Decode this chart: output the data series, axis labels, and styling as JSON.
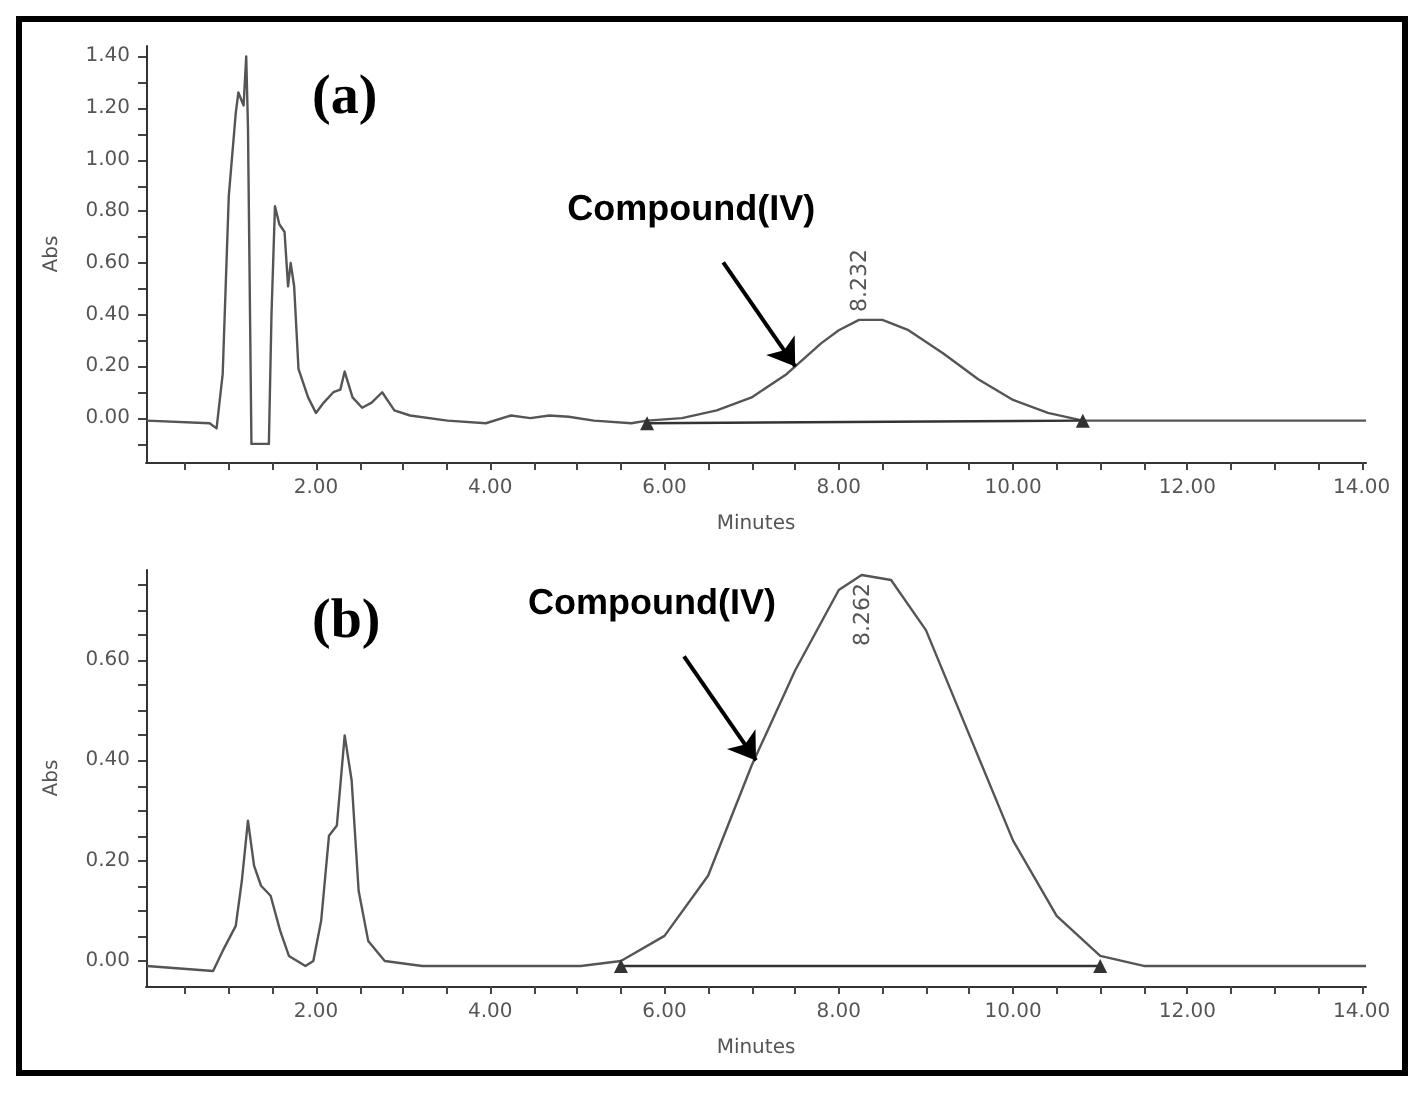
{
  "chart_data": [
    {
      "type": "line",
      "title": "(a)",
      "xlabel": "Minutes",
      "ylabel": "Abs",
      "marker": "none",
      "grid": false,
      "xlim": [
        0.05,
        14.05
      ],
      "ylim": [
        -0.17,
        1.44
      ],
      "xticks": [
        {
          "value": 0.5,
          "label": null
        },
        {
          "value": 1,
          "label": null
        },
        {
          "value": 1.5,
          "label": null
        },
        {
          "value": 2,
          "label": "2.00"
        },
        {
          "value": 2.5,
          "label": null
        },
        {
          "value": 3,
          "label": null
        },
        {
          "value": 3.5,
          "label": null
        },
        {
          "value": 4,
          "label": "4.00"
        },
        {
          "value": 4.5,
          "label": null
        },
        {
          "value": 5,
          "label": null
        },
        {
          "value": 5.5,
          "label": null
        },
        {
          "value": 6,
          "label": "6.00"
        },
        {
          "value": 6.5,
          "label": null
        },
        {
          "value": 7,
          "label": null
        },
        {
          "value": 7.5,
          "label": null
        },
        {
          "value": 8,
          "label": "8.00"
        },
        {
          "value": 8.5,
          "label": null
        },
        {
          "value": 9,
          "label": null
        },
        {
          "value": 9.5,
          "label": null
        },
        {
          "value": 10,
          "label": "10.00"
        },
        {
          "value": 10.5,
          "label": null
        },
        {
          "value": 11,
          "label": null
        },
        {
          "value": 11.5,
          "label": null
        },
        {
          "value": 12,
          "label": "12.00"
        },
        {
          "value": 12.5,
          "label": null
        },
        {
          "value": 13,
          "label": null
        },
        {
          "value": 13.5,
          "label": null
        },
        {
          "value": 14,
          "label": "14.00"
        }
      ],
      "yticks": [
        {
          "value": -0.1,
          "label": null
        },
        {
          "value": 0,
          "label": "0.00"
        },
        {
          "value": 0.1,
          "label": null
        },
        {
          "value": 0.2,
          "label": "0.20"
        },
        {
          "value": 0.3,
          "label": null
        },
        {
          "value": 0.4,
          "label": "0.40"
        },
        {
          "value": 0.5,
          "label": null
        },
        {
          "value": 0.6,
          "label": "0.60"
        },
        {
          "value": 0.7,
          "label": null
        },
        {
          "value": 0.8,
          "label": "0.80"
        },
        {
          "value": 0.9,
          "label": null
        },
        {
          "value": 1,
          "label": "1.00"
        },
        {
          "value": 1.1,
          "label": null
        },
        {
          "value": 1.2,
          "label": "1.20"
        },
        {
          "value": 1.3,
          "label": null
        },
        {
          "value": 1.4,
          "label": "1.40"
        }
      ],
      "series": [
        {
          "color": "#555555",
          "x": [
            0.06,
            0.78,
            0.86,
            0.93,
            1.0,
            1.08,
            1.11,
            1.17,
            1.2,
            1.22,
            1.26,
            1.46,
            1.49,
            1.53,
            1.58,
            1.64,
            1.68,
            1.71,
            1.75,
            1.8,
            1.91,
            2.0,
            2.09,
            2.2,
            2.28,
            2.33,
            2.42,
            2.53,
            2.64,
            2.76,
            2.9,
            3.08,
            3.51,
            3.95,
            4.24,
            4.46,
            4.68,
            4.9,
            5.19,
            5.62,
            5.8,
            6.2,
            6.6,
            7.0,
            7.4,
            7.8,
            8.0,
            8.232,
            8.5,
            8.8,
            9.2,
            9.6,
            10.0,
            10.4,
            10.8,
            11.5,
            14.05
          ],
          "values": [
            -0.01,
            -0.02,
            -0.04,
            0.17,
            0.86,
            1.18,
            1.26,
            1.21,
            1.4,
            1.13,
            -0.1,
            -0.1,
            0.4,
            0.82,
            0.75,
            0.72,
            0.51,
            0.6,
            0.51,
            0.19,
            0.08,
            0.02,
            0.06,
            0.1,
            0.11,
            0.18,
            0.08,
            0.04,
            0.06,
            0.1,
            0.03,
            0.01,
            -0.01,
            -0.02,
            0.01,
            0,
            0.01,
            0.005,
            -0.01,
            -0.02,
            -0.01,
            0.0,
            0.03,
            0.08,
            0.17,
            0.29,
            0.34,
            0.38,
            0.38,
            0.34,
            0.25,
            0.15,
            0.07,
            0.02,
            -0.01,
            -0.01,
            -0.01
          ]
        },
        {
          "color": "#333333",
          "marker": "triangle",
          "x": [
            5.8,
            10.8
          ],
          "values": [
            -0.02,
            -0.01
          ]
        }
      ],
      "annotations": [
        {
          "text": "Compound(IV)",
          "x": 7.5,
          "y": 0.2
        },
        {
          "text": "8.232",
          "x": 8.232,
          "y": 0.38
        }
      ]
    },
    {
      "type": "line",
      "title": "(b)",
      "xlabel": "Minutes",
      "ylabel": "Abs",
      "marker": "none",
      "grid": false,
      "xlim": [
        0.05,
        14.05
      ],
      "ylim": [
        -0.05,
        0.78
      ],
      "xticks": [
        {
          "value": 0.5,
          "label": null
        },
        {
          "value": 1,
          "label": null
        },
        {
          "value": 1.5,
          "label": null
        },
        {
          "value": 2,
          "label": "2.00"
        },
        {
          "value": 2.5,
          "label": null
        },
        {
          "value": 3,
          "label": null
        },
        {
          "value": 3.5,
          "label": null
        },
        {
          "value": 4,
          "label": "4.00"
        },
        {
          "value": 4.5,
          "label": null
        },
        {
          "value": 5,
          "label": null
        },
        {
          "value": 5.5,
          "label": null
        },
        {
          "value": 6,
          "label": "6.00"
        },
        {
          "value": 6.5,
          "label": null
        },
        {
          "value": 7,
          "label": null
        },
        {
          "value": 7.5,
          "label": null
        },
        {
          "value": 8,
          "label": "8.00"
        },
        {
          "value": 8.5,
          "label": null
        },
        {
          "value": 9,
          "label": null
        },
        {
          "value": 9.5,
          "label": null
        },
        {
          "value": 10,
          "label": "10.00"
        },
        {
          "value": 10.5,
          "label": null
        },
        {
          "value": 11,
          "label": null
        },
        {
          "value": 11.5,
          "label": null
        },
        {
          "value": 12,
          "label": "12.00"
        },
        {
          "value": 12.5,
          "label": null
        },
        {
          "value": 13,
          "label": null
        },
        {
          "value": 13.5,
          "label": null
        },
        {
          "value": 14,
          "label": "14.00"
        }
      ],
      "yticks": [
        {
          "value": 0,
          "label": "0.00"
        },
        {
          "value": 0.05,
          "label": null
        },
        {
          "value": 0.1,
          "label": null
        },
        {
          "value": 0.15,
          "label": null
        },
        {
          "value": 0.2,
          "label": "0.20"
        },
        {
          "value": 0.25,
          "label": null
        },
        {
          "value": 0.3,
          "label": null
        },
        {
          "value": 0.35,
          "label": null
        },
        {
          "value": 0.4,
          "label": "0.40"
        },
        {
          "value": 0.45,
          "label": null
        },
        {
          "value": 0.5,
          "label": null
        },
        {
          "value": 0.55,
          "label": null
        },
        {
          "value": 0.6,
          "label": "0.60"
        },
        {
          "value": 0.65,
          "label": null
        },
        {
          "value": 0.7,
          "label": null
        },
        {
          "value": 0.75,
          "label": null
        }
      ],
      "series": [
        {
          "color": "#555555",
          "x": [
            0.06,
            0.82,
            0.93,
            1.08,
            1.15,
            1.22,
            1.29,
            1.37,
            1.48,
            1.59,
            1.69,
            1.88,
            1.97,
            2.06,
            2.15,
            2.24,
            2.33,
            2.41,
            2.49,
            2.6,
            2.79,
            3.22,
            3.95,
            5.04,
            5.5,
            6.0,
            6.5,
            7.0,
            7.5,
            8.0,
            8.262,
            8.6,
            9.0,
            9.5,
            10.0,
            10.5,
            11.0,
            11.5,
            14.05
          ],
          "values": [
            -0.01,
            -0.02,
            0.02,
            0.07,
            0.16,
            0.28,
            0.19,
            0.15,
            0.13,
            0.06,
            0.01,
            -0.01,
            0.0,
            0.08,
            0.25,
            0.27,
            0.45,
            0.36,
            0.14,
            0.04,
            0.0,
            -0.01,
            -0.01,
            -0.01,
            0.0,
            0.05,
            0.17,
            0.39,
            0.58,
            0.74,
            0.77,
            0.76,
            0.66,
            0.45,
            0.24,
            0.09,
            0.01,
            -0.01,
            -0.01
          ]
        },
        {
          "color": "#333333",
          "marker": "triangle",
          "x": [
            5.5,
            11.0
          ],
          "values": [
            -0.01,
            -0.01
          ]
        }
      ],
      "annotations": [
        {
          "text": "Compound(IV)",
          "x": 7.05,
          "y": 0.4
        },
        {
          "text": "8.262",
          "x": 8.262,
          "y": 0.77
        }
      ]
    }
  ]
}
